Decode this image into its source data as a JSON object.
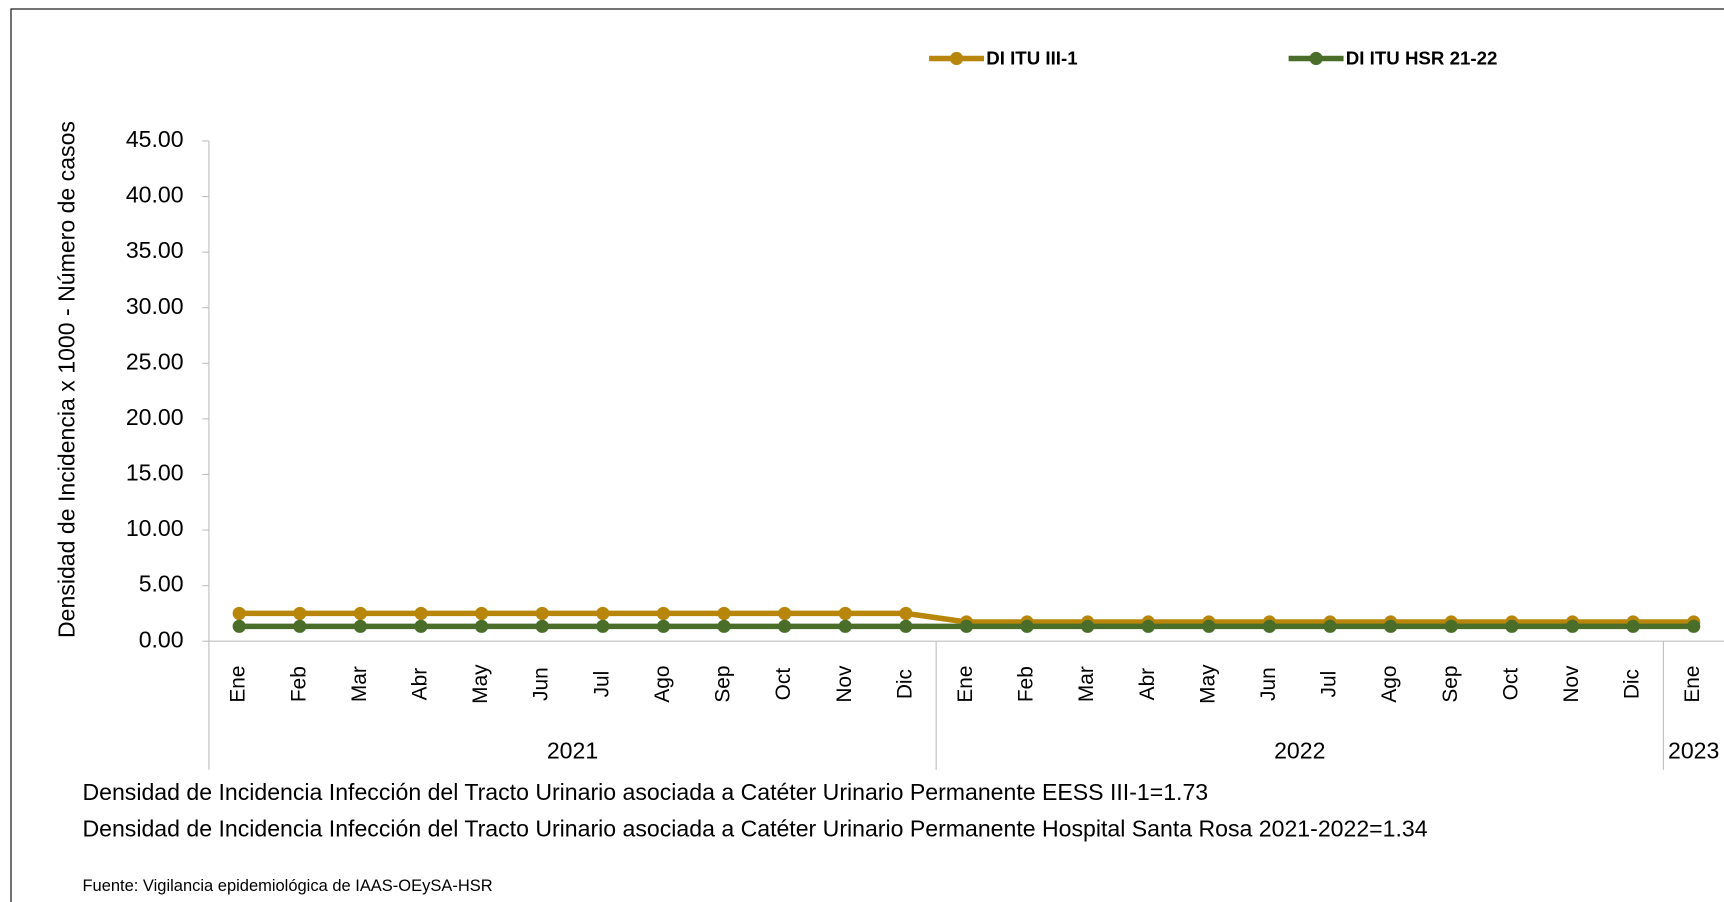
{
  "chart_data": {
    "type": "line",
    "y_axis_label": "Densidad de Incidencia x 1000 - Número de casos",
    "categories": [
      "Ene",
      "Feb",
      "Mar",
      "Abr",
      "May",
      "Jun",
      "Jul",
      "Ago",
      "Sep",
      "Oct",
      "Nov",
      "Dic",
      "Ene",
      "Feb",
      "Mar",
      "Abr",
      "May",
      "Jun",
      "Jul",
      "Ago",
      "Sep",
      "Oct",
      "Nov",
      "Dic",
      "Ene"
    ],
    "years": [
      "2021",
      "2022",
      "2023"
    ],
    "series": [
      {
        "name": "DI ITU III-1",
        "color": "#b8860b",
        "values": [
          2.5,
          2.5,
          2.5,
          2.5,
          2.5,
          2.5,
          2.5,
          2.5,
          2.5,
          2.5,
          2.5,
          2.5,
          1.73,
          1.73,
          1.73,
          1.73,
          1.73,
          1.73,
          1.73,
          1.73,
          1.73,
          1.73,
          1.73,
          1.73,
          1.73
        ]
      },
      {
        "name": "DI ITU HSR 21-22",
        "color": "#4a6e2a",
        "values": [
          1.34,
          1.34,
          1.34,
          1.34,
          1.34,
          1.34,
          1.34,
          1.34,
          1.34,
          1.34,
          1.34,
          1.34,
          1.34,
          1.34,
          1.34,
          1.34,
          1.34,
          1.34,
          1.34,
          1.34,
          1.34,
          1.34,
          1.34,
          1.34,
          1.34
        ]
      }
    ],
    "ylim": [
      0,
      45
    ],
    "yticks": [
      {
        "value": 0,
        "label": "0.00"
      },
      {
        "value": 5,
        "label": "5.00"
      },
      {
        "value": 10,
        "label": "10.00"
      },
      {
        "value": 15,
        "label": "15.00"
      },
      {
        "value": 20,
        "label": "20.00"
      },
      {
        "value": 25,
        "label": "25.00"
      },
      {
        "value": 30,
        "label": "30.00"
      },
      {
        "value": 35,
        "label": "35.00"
      },
      {
        "value": 40,
        "label": "40.00"
      },
      {
        "value": 45,
        "label": "45.00"
      }
    ],
    "notes": [
      "Densidad de Incidencia Infección del  Tracto Urinario asociada a Catéter Urinario Permanente  EESS III-1=1.73",
      "Densidad de Incidencia Infección del  Tracto Urinario asociada a Catéter Urinario Permanente    Hospital Santa Rosa  2021-2022=1.34"
    ],
    "source": "Fuente: Vigilancia epidemiológica de IAAS-OEySA-HSR"
  }
}
